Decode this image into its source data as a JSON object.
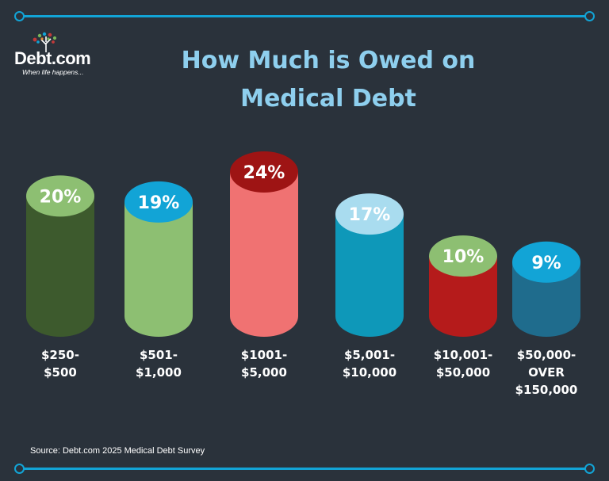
{
  "brand": {
    "name": "Debt.com",
    "tagline": "When life happens..."
  },
  "title_line1": "How Much is Owed on",
  "title_line2": "Medical Debt",
  "source": "Source: Debt.com 2025 Medical Debt Survey",
  "chart_data": {
    "type": "bar",
    "title": "How Much is Owed on Medical Debt",
    "categories": [
      "$250-\n$500",
      "$501-\n$1,000",
      "$1001-\n$5,000",
      "$5,001-\n$10,000",
      "$10,001-\n$50,000",
      "$50,000-\nOVER\n$150,000"
    ],
    "values": [
      20,
      19,
      24,
      17,
      10,
      9
    ],
    "labels": [
      "20%",
      "19%",
      "24%",
      "17%",
      "10%",
      "9%"
    ],
    "unit": "%",
    "colors": {
      "body": [
        "#3d5a2d",
        "#8dbf72",
        "#f07272",
        "#0e98b9",
        "#b51b1b",
        "#1f6c8d"
      ],
      "cap": [
        "#8dbf72",
        "#12a4d6",
        "#9e1414",
        "#a9dcef",
        "#8dbf72",
        "#12a4d6"
      ]
    },
    "ylim": [
      0,
      24
    ]
  }
}
